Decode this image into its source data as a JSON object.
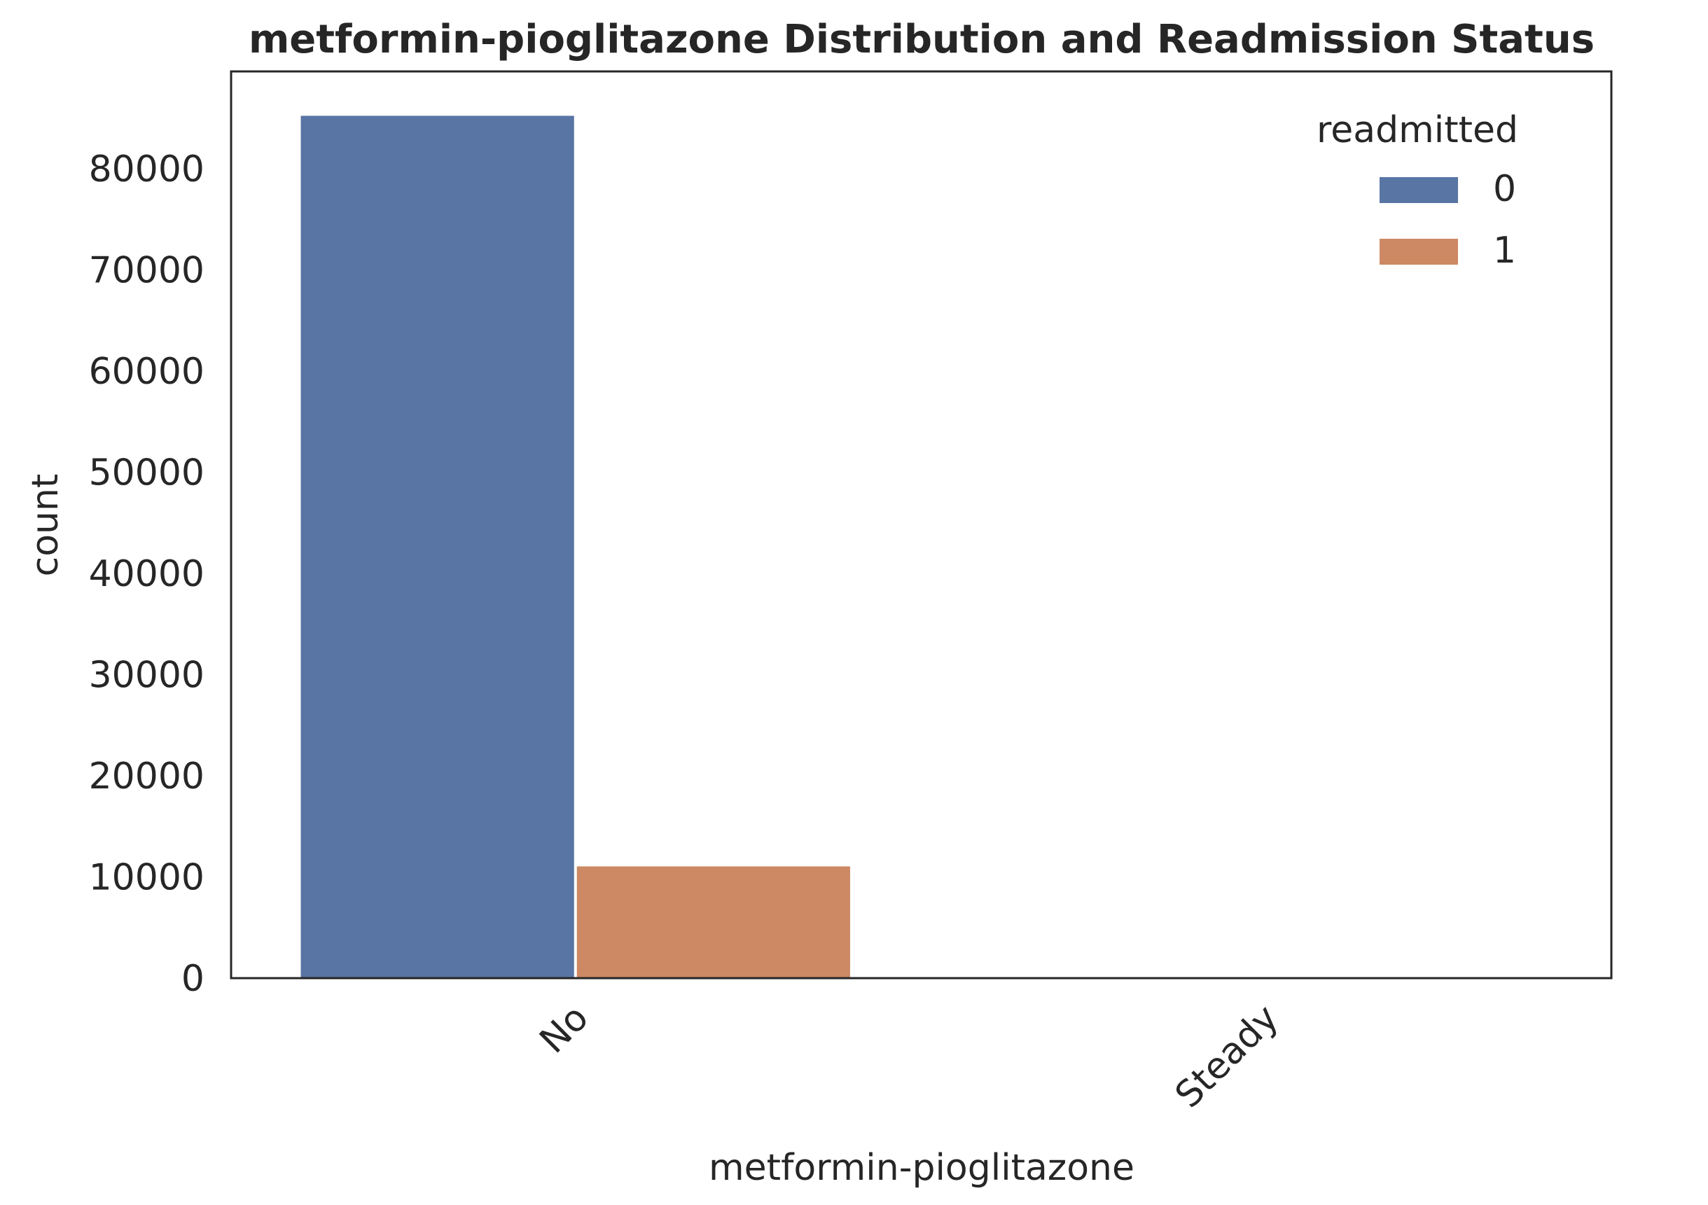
{
  "chart_data": {
    "type": "bar",
    "title": "metformin-pioglitazone Distribution and Readmission Status",
    "xlabel": "metformin-pioglitazone",
    "ylabel": "count",
    "categories": [
      "No",
      "Steady"
    ],
    "series": [
      {
        "name": "0",
        "values": [
          85283,
          1
        ],
        "color": "#5875a4"
      },
      {
        "name": "1",
        "values": [
          11111,
          0
        ],
        "color": "#cc8963"
      }
    ],
    "ylim": [
      0,
      89600
    ],
    "yticks": [
      0,
      10000,
      20000,
      30000,
      40000,
      50000,
      60000,
      70000,
      80000
    ],
    "legend": {
      "title": "readmitted",
      "placement": "top-right"
    },
    "grid": false
  }
}
